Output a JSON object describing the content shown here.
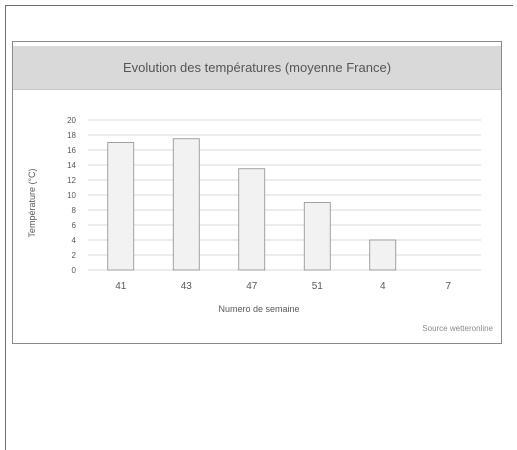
{
  "chart_data": {
    "type": "bar",
    "title": "Evolution des températures (moyenne France)",
    "xlabel": "Numero de semaine",
    "ylabel": "Température (°C)",
    "categories": [
      "41",
      "43",
      "47",
      "51",
      "4",
      "7"
    ],
    "values": [
      17,
      17.5,
      13.5,
      9,
      4,
      0
    ],
    "ylim": [
      0,
      20
    ],
    "yticks": [
      "0",
      "2",
      "4",
      "6",
      "8",
      "10",
      "12",
      "14",
      "16",
      "18",
      "20"
    ],
    "grid": true,
    "source": "Source wetteronline"
  },
  "colors": {
    "bar_fill": "#f2f2f2",
    "bar_stroke": "#8c8c8c",
    "grid": "#d9d9d9",
    "text": "#595959"
  }
}
